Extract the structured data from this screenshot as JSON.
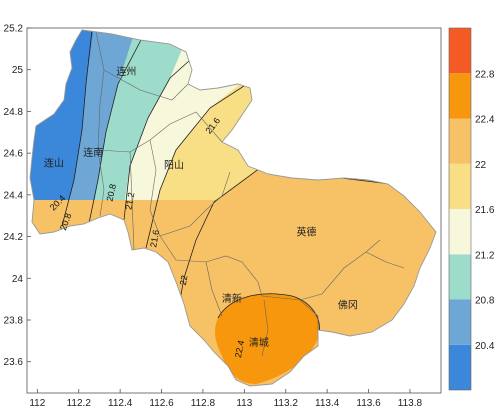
{
  "map": {
    "x_ticks": [
      "112",
      "112.2",
      "112.4",
      "112.6",
      "112.8",
      "113",
      "113.2",
      "113.4",
      "113.6",
      "113.8"
    ],
    "y_ticks": [
      "25.2",
      "25",
      "24.8",
      "24.6",
      "24.4",
      "24.2",
      "24",
      "23.8",
      "23.6"
    ],
    "x_range": [
      111.95,
      113.95
    ],
    "y_range": [
      23.45,
      25.2
    ],
    "cities": [
      {
        "name": "连州",
        "lon": 112.43,
        "lat": 24.99
      },
      {
        "name": "连山",
        "lon": 112.08,
        "lat": 24.55
      },
      {
        "name": "连南",
        "lon": 112.27,
        "lat": 24.6
      },
      {
        "name": "阳山",
        "lon": 112.66,
        "lat": 24.54
      },
      {
        "name": "英德",
        "lon": 113.3,
        "lat": 24.22
      },
      {
        "name": "清新",
        "lon": 112.94,
        "lat": 23.9
      },
      {
        "name": "佛冈",
        "lon": 113.5,
        "lat": 23.87
      },
      {
        "name": "清城",
        "lon": 113.07,
        "lat": 23.69
      }
    ],
    "contour_labels": [
      {
        "text": "21.6",
        "lon": 112.85,
        "lat": 24.73
      },
      {
        "text": "20.4",
        "lon": 112.1,
        "lat": 24.36
      },
      {
        "text": "20.8",
        "lon": 112.14,
        "lat": 24.27
      },
      {
        "text": "20.8",
        "lon": 112.36,
        "lat": 24.41
      },
      {
        "text": "21.2",
        "lon": 112.45,
        "lat": 24.37
      },
      {
        "text": "21.6",
        "lon": 112.57,
        "lat": 24.19
      },
      {
        "text": "22",
        "lon": 112.71,
        "lat": 23.99
      },
      {
        "text": "22.4",
        "lon": 112.98,
        "lat": 23.66
      }
    ]
  },
  "legend": {
    "labels": [
      "20.4",
      "20.8",
      "21.2",
      "21.6",
      "22",
      "22.4",
      "22.8"
    ],
    "colors": [
      "#3b87da",
      "#6ea6d5",
      "#9ddcca",
      "#f7f7dc",
      "#f8df86",
      "#f7c166",
      "#f7970d",
      "#f45a23"
    ]
  }
}
